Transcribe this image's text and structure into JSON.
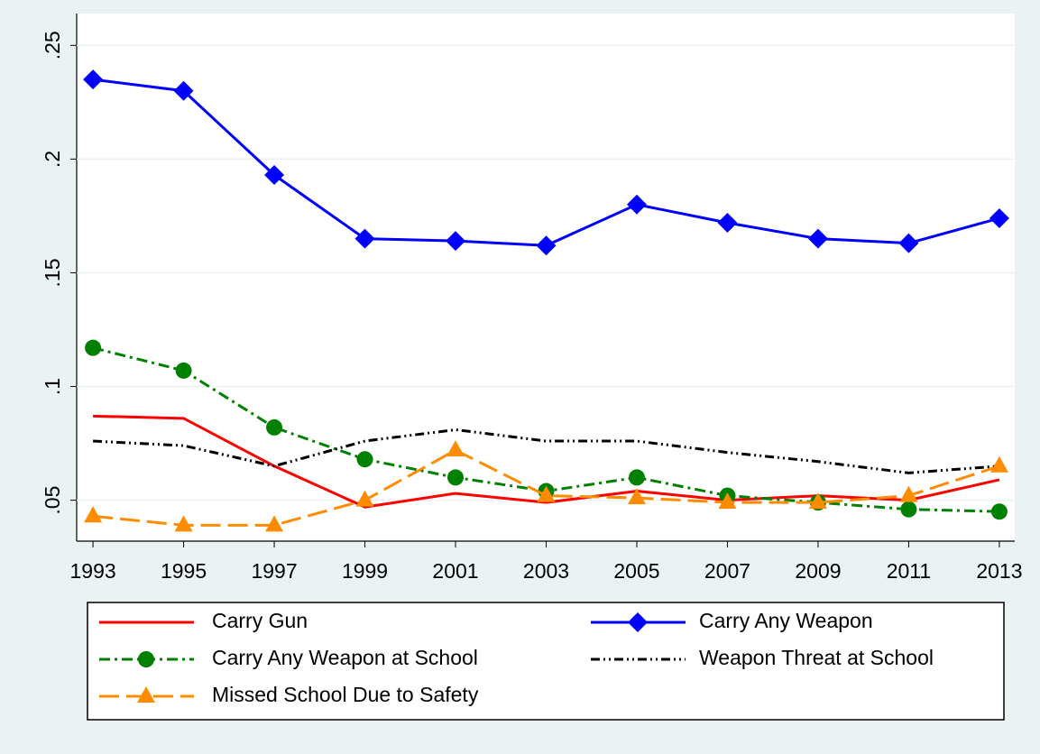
{
  "chart_data": {
    "type": "line",
    "x": [
      1993,
      1995,
      1997,
      1999,
      2001,
      2003,
      2005,
      2007,
      2009,
      2011,
      2013
    ],
    "xlim": [
      1992.64,
      2013.34
    ],
    "xticks": [
      1993,
      1995,
      1997,
      1999,
      2001,
      2003,
      2005,
      2007,
      2009,
      2011,
      2013
    ],
    "ylim": [
      0.032,
      0.264
    ],
    "yticks": [
      {
        "value": 0.05,
        "label": ".05"
      },
      {
        "value": 0.1,
        "label": ".1"
      },
      {
        "value": 0.15,
        "label": ".15"
      },
      {
        "value": 0.2,
        "label": ".2"
      },
      {
        "value": 0.25,
        "label": ".25"
      }
    ],
    "grid": true,
    "legend": "bottom",
    "series": [
      {
        "name": "Carry Gun",
        "color": "#ff0000",
        "line_style": "solid",
        "marker": "none",
        "values": [
          0.087,
          0.086,
          0.065,
          0.047,
          0.053,
          0.049,
          0.054,
          0.05,
          0.052,
          0.05,
          0.059
        ]
      },
      {
        "name": "Carry Any Weapon",
        "color": "#0000ff",
        "line_style": "solid",
        "marker": "diamond",
        "values": [
          0.235,
          0.23,
          0.193,
          0.165,
          0.164,
          0.162,
          0.18,
          0.172,
          0.165,
          0.163,
          0.174
        ]
      },
      {
        "name": "Carry Any Weapon at School",
        "color": "#008000",
        "line_style": "dash_dot",
        "marker": "circle",
        "values": [
          0.117,
          0.107,
          0.082,
          0.068,
          0.06,
          0.054,
          0.06,
          0.052,
          0.049,
          0.046,
          0.045
        ]
      },
      {
        "name": "Weapon Threat at School",
        "color": "#000000",
        "line_style": "dash_dot_dot",
        "marker": "none",
        "values": [
          0.076,
          0.074,
          0.065,
          0.076,
          0.081,
          0.076,
          0.076,
          0.071,
          0.067,
          0.062,
          0.065
        ]
      },
      {
        "name": "Missed School Due to Safety",
        "color": "#ff8c00",
        "line_style": "long_dash",
        "marker": "triangle",
        "values": [
          0.043,
          0.039,
          0.039,
          0.05,
          0.072,
          0.052,
          0.051,
          0.049,
          0.049,
          0.052,
          0.065
        ]
      }
    ]
  }
}
